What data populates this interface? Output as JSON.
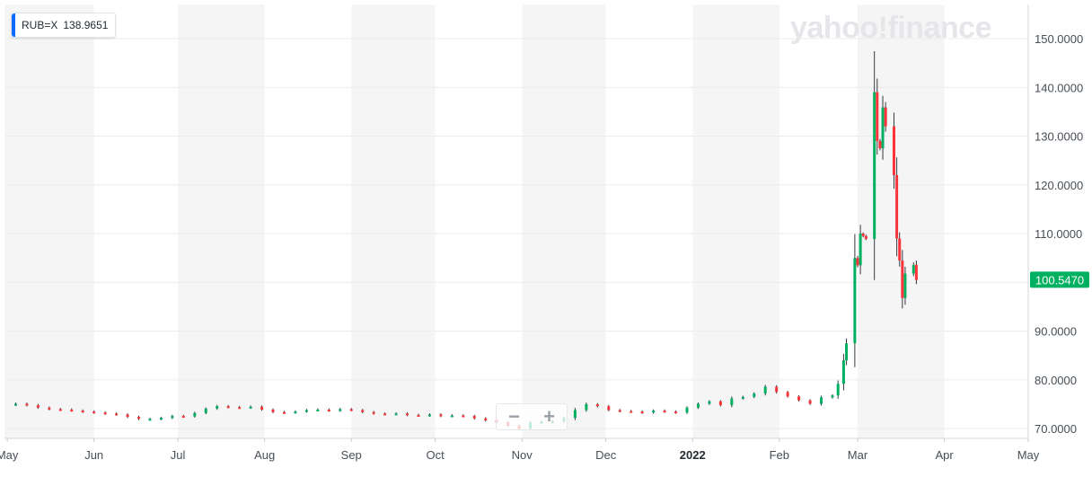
{
  "ticker": {
    "symbol": "RUB=X",
    "value": "138.9651",
    "accent": "#0f69ff"
  },
  "watermark": "yahoo!finance",
  "zoom": {
    "out_label": "−",
    "in_label": "+"
  },
  "last_price": {
    "label": "100.5470",
    "value": 100.547,
    "color": "#00b061"
  },
  "colors": {
    "up": "#00b061",
    "down": "#ff333a",
    "band": "#f5f5f5",
    "grid": "#ececec"
  },
  "chart_data": {
    "type": "candlestick",
    "xlabel": "",
    "ylabel": "",
    "ylim": [
      68,
      157
    ],
    "y_ticks": [
      {
        "value": 70,
        "label": "70.0000"
      },
      {
        "value": 80,
        "label": "80.0000"
      },
      {
        "value": 90,
        "label": "90.0000"
      },
      {
        "value": 100,
        "label": "100.0000"
      },
      {
        "value": 110,
        "label": "110.0000"
      },
      {
        "value": 120,
        "label": "120.0000"
      },
      {
        "value": 130,
        "label": "130.0000"
      },
      {
        "value": 140,
        "label": "140.0000"
      },
      {
        "value": 150,
        "label": "150.0000"
      }
    ],
    "x_ticks": [
      {
        "date": "2021-05-01",
        "label": "May",
        "bold": false
      },
      {
        "date": "2021-06-01",
        "label": "Jun",
        "bold": false
      },
      {
        "date": "2021-07-01",
        "label": "Jul",
        "bold": false
      },
      {
        "date": "2021-08-01",
        "label": "Aug",
        "bold": false
      },
      {
        "date": "2021-09-01",
        "label": "Sep",
        "bold": false
      },
      {
        "date": "2021-10-01",
        "label": "Oct",
        "bold": false
      },
      {
        "date": "2021-11-01",
        "label": "Nov",
        "bold": false
      },
      {
        "date": "2021-12-01",
        "label": "Dec",
        "bold": false
      },
      {
        "date": "2022-01-01",
        "label": "2022",
        "bold": true
      },
      {
        "date": "2022-02-01",
        "label": "Feb",
        "bold": false
      },
      {
        "date": "2022-03-01",
        "label": "Mar",
        "bold": false
      },
      {
        "date": "2022-04-01",
        "label": "Apr",
        "bold": false
      },
      {
        "date": "2022-05-01",
        "label": "May",
        "bold": false
      }
    ],
    "x_range": [
      "2021-04-30",
      "2022-05-01"
    ],
    "closes": [
      [
        "2021-04-30",
        74.9
      ],
      [
        "2021-05-04",
        75.1
      ],
      [
        "2021-05-08",
        74.8
      ],
      [
        "2021-05-12",
        74.3
      ],
      [
        "2021-05-16",
        74.0
      ],
      [
        "2021-05-20",
        73.9
      ],
      [
        "2021-05-24",
        73.7
      ],
      [
        "2021-05-28",
        73.5
      ],
      [
        "2021-06-01",
        73.3
      ],
      [
        "2021-06-05",
        73.1
      ],
      [
        "2021-06-09",
        72.9
      ],
      [
        "2021-06-13",
        72.4
      ],
      [
        "2021-06-17",
        72.0
      ],
      [
        "2021-06-21",
        72.0
      ],
      [
        "2021-06-25",
        72.2
      ],
      [
        "2021-06-29",
        72.6
      ],
      [
        "2021-07-03",
        72.5
      ],
      [
        "2021-07-07",
        73.2
      ],
      [
        "2021-07-11",
        74.1
      ],
      [
        "2021-07-15",
        74.6
      ],
      [
        "2021-07-19",
        74.4
      ],
      [
        "2021-07-23",
        74.3
      ],
      [
        "2021-07-27",
        74.5
      ],
      [
        "2021-07-31",
        73.9
      ],
      [
        "2021-08-04",
        73.4
      ],
      [
        "2021-08-08",
        73.3
      ],
      [
        "2021-08-12",
        73.5
      ],
      [
        "2021-08-16",
        73.8
      ],
      [
        "2021-08-20",
        73.9
      ],
      [
        "2021-08-24",
        73.7
      ],
      [
        "2021-08-28",
        74.0
      ],
      [
        "2021-09-01",
        73.8
      ],
      [
        "2021-09-05",
        73.4
      ],
      [
        "2021-09-09",
        73.1
      ],
      [
        "2021-09-13",
        73.0
      ],
      [
        "2021-09-17",
        73.1
      ],
      [
        "2021-09-21",
        72.8
      ],
      [
        "2021-09-25",
        72.7
      ],
      [
        "2021-09-29",
        72.9
      ],
      [
        "2021-10-03",
        72.6
      ],
      [
        "2021-10-07",
        72.7
      ],
      [
        "2021-10-11",
        72.6
      ],
      [
        "2021-10-15",
        72.1
      ],
      [
        "2021-10-19",
        71.7
      ],
      [
        "2021-10-23",
        71.3
      ],
      [
        "2021-10-27",
        70.6
      ],
      [
        "2021-10-31",
        70.0
      ],
      [
        "2021-11-04",
        71.2
      ],
      [
        "2021-11-08",
        71.4
      ],
      [
        "2021-11-12",
        71.5
      ],
      [
        "2021-11-16",
        72.2
      ],
      [
        "2021-11-20",
        73.8
      ],
      [
        "2021-11-24",
        75.0
      ],
      [
        "2021-11-28",
        74.6
      ],
      [
        "2021-12-02",
        73.8
      ],
      [
        "2021-12-06",
        73.6
      ],
      [
        "2021-12-10",
        73.5
      ],
      [
        "2021-12-14",
        73.3
      ],
      [
        "2021-12-18",
        73.7
      ],
      [
        "2021-12-22",
        73.5
      ],
      [
        "2021-12-26",
        73.3
      ],
      [
        "2021-12-30",
        74.3
      ],
      [
        "2022-01-03",
        75.1
      ],
      [
        "2022-01-07",
        75.6
      ],
      [
        "2022-01-11",
        74.8
      ],
      [
        "2022-01-15",
        76.2
      ],
      [
        "2022-01-19",
        76.5
      ],
      [
        "2022-01-23",
        77.2
      ],
      [
        "2022-01-27",
        78.6
      ],
      [
        "2022-01-31",
        77.5
      ],
      [
        "2022-02-04",
        76.6
      ],
      [
        "2022-02-08",
        75.8
      ],
      [
        "2022-02-12",
        75.1
      ],
      [
        "2022-02-16",
        76.4
      ],
      [
        "2022-02-20",
        76.8
      ],
      [
        "2022-02-22",
        79.2
      ],
      [
        "2022-02-24",
        84.0
      ],
      [
        "2022-02-25",
        87.5
      ],
      [
        "2022-02-28",
        105.0
      ],
      [
        "2022-03-01",
        103.5
      ],
      [
        "2022-03-02",
        110.0
      ],
      [
        "2022-03-03",
        109.5
      ],
      [
        "2022-03-04",
        108.9
      ],
      [
        "2022-03-07",
        139.0
      ],
      [
        "2022-03-08",
        129.0
      ],
      [
        "2022-03-09",
        127.5
      ],
      [
        "2022-03-10",
        135.9
      ],
      [
        "2022-03-11",
        132.0
      ],
      [
        "2022-03-14",
        122.0
      ],
      [
        "2022-03-15",
        109.0
      ],
      [
        "2022-03-16",
        104.5
      ],
      [
        "2022-03-17",
        96.8
      ],
      [
        "2022-03-18",
        101.8
      ],
      [
        "2022-03-21",
        103.6
      ],
      [
        "2022-03-22",
        100.5
      ]
    ]
  }
}
